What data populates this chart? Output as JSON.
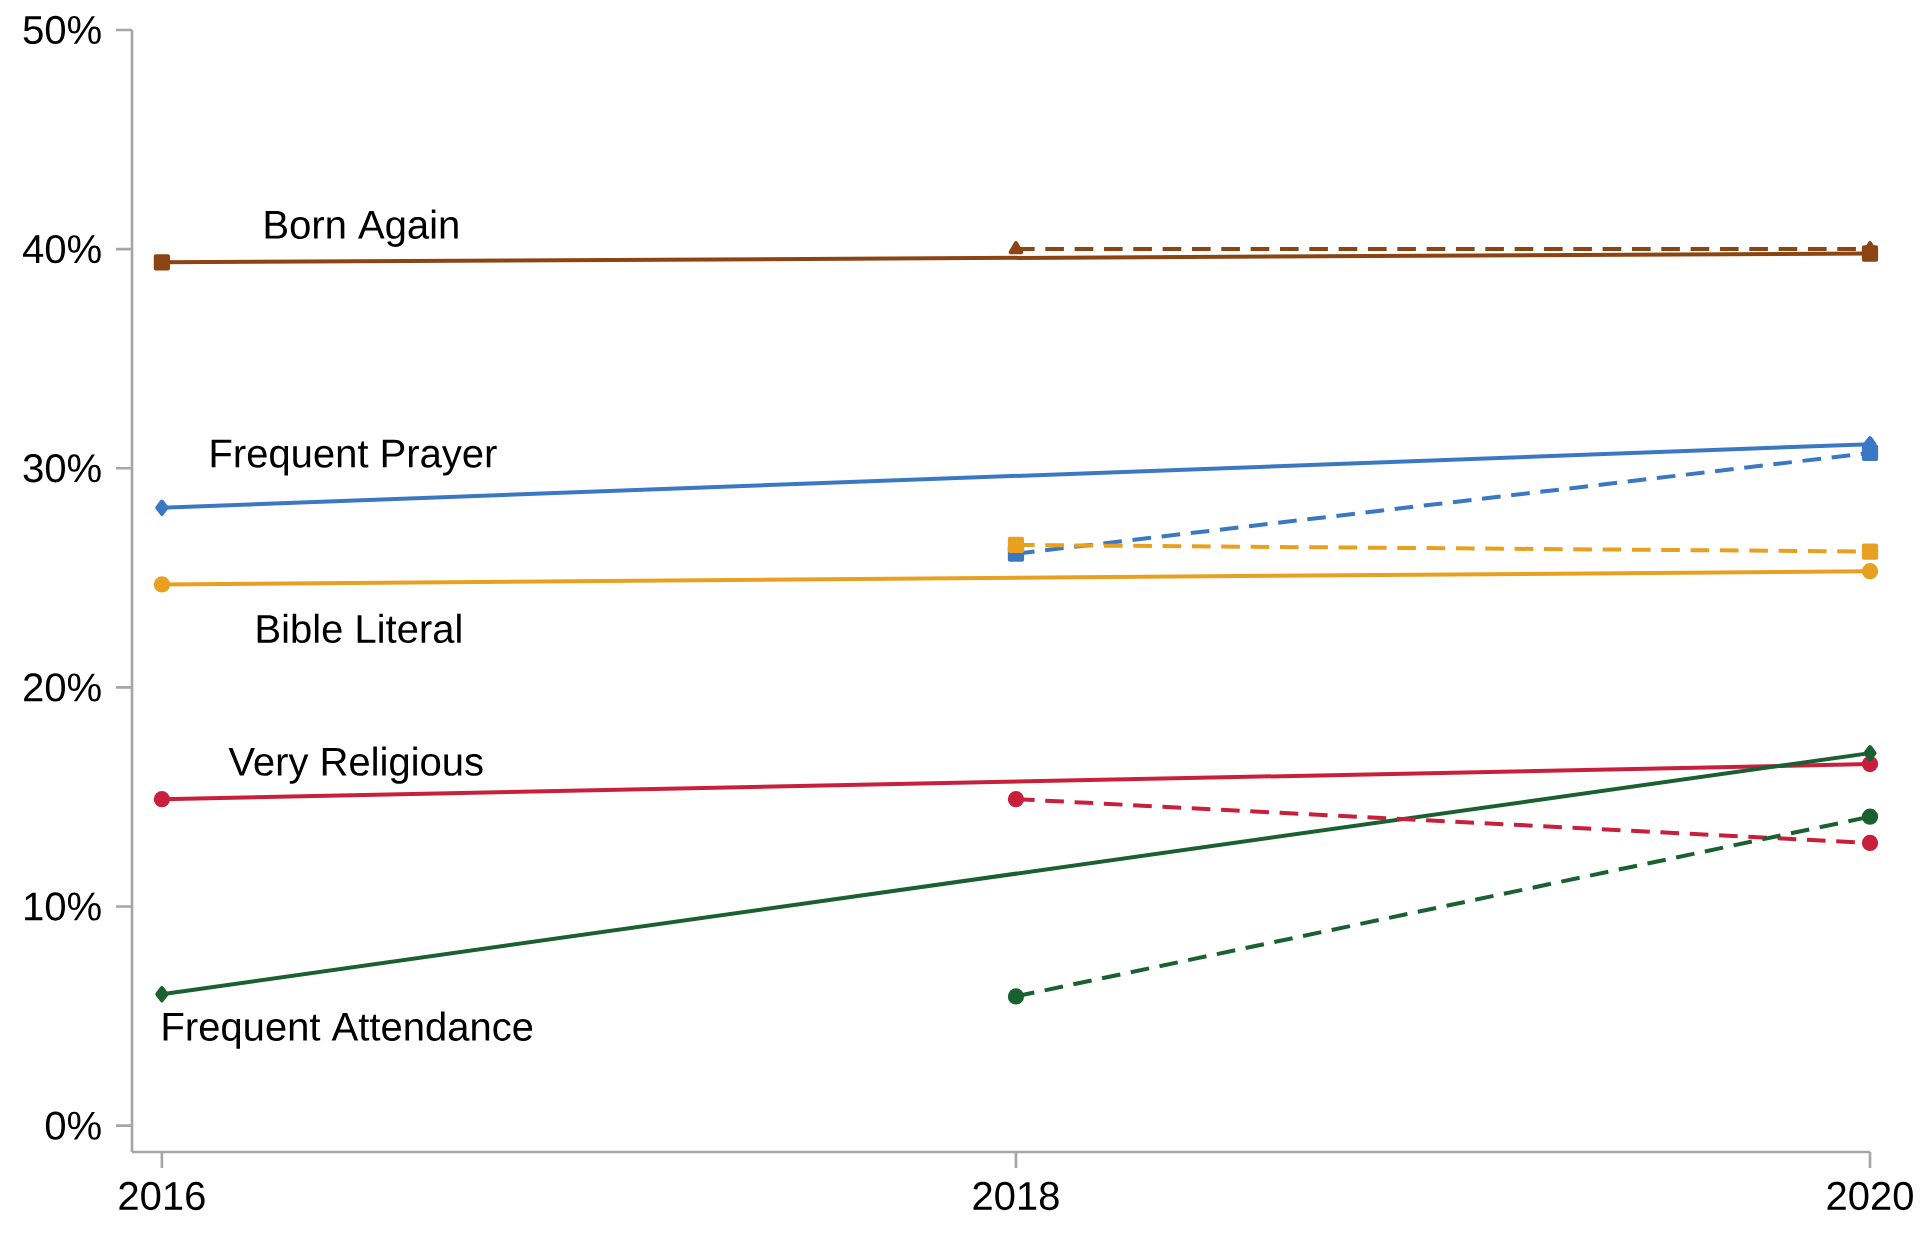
{
  "chart_data": {
    "type": "line",
    "xlim": [
      2015.93,
      2020
    ],
    "ylim": [
      -1.2,
      50
    ],
    "xticks": [
      2016,
      2018,
      2020
    ],
    "yticks": [
      {
        "value": 0,
        "label": "0%"
      },
      {
        "value": 10,
        "label": "10%"
      },
      {
        "value": 20,
        "label": "20%"
      },
      {
        "value": 30,
        "label": "30%"
      },
      {
        "value": 40,
        "label": "40%"
      },
      {
        "value": 50,
        "label": "50%"
      }
    ],
    "series": [
      {
        "name": "Born Again",
        "color": "#8b4513",
        "x": [
          2016,
          2020
        ],
        "values": [
          39.4,
          39.8
        ],
        "line_style": "solid",
        "marker": "square"
      },
      {
        "name": "Frequent Prayer",
        "color": "#3b78c3",
        "x": [
          2016,
          2020
        ],
        "values": [
          28.2,
          31.1
        ],
        "line_style": "solid",
        "marker": "diamond"
      },
      {
        "name": "Bible Literal",
        "color": "#e8a020",
        "x": [
          2016,
          2020
        ],
        "values": [
          24.7,
          25.3
        ],
        "line_style": "solid",
        "marker": "circle"
      },
      {
        "name": "Very Religious",
        "color": "#c8203c",
        "x": [
          2016,
          2020
        ],
        "values": [
          14.9,
          16.5
        ],
        "line_style": "solid",
        "marker": "circle"
      },
      {
        "name": "Frequent Attendance",
        "color": "#1a6030",
        "x": [
          2016,
          2020
        ],
        "values": [
          6.0,
          17.0
        ],
        "line_style": "solid",
        "marker": "diamond"
      },
      {
        "color": "#8b4513",
        "x": [
          2018,
          2020
        ],
        "values": [
          40.0,
          40.0
        ],
        "line_style": "dashed",
        "marker": "triangle"
      },
      {
        "color": "#3b78c3",
        "x": [
          2018,
          2020
        ],
        "values": [
          26.1,
          30.7
        ],
        "line_style": "dashed",
        "marker": "square"
      },
      {
        "color": "#e8a020",
        "x": [
          2018,
          2020
        ],
        "values": [
          26.5,
          26.2
        ],
        "line_style": "dashed",
        "marker": "square"
      },
      {
        "color": "#c8203c",
        "x": [
          2018,
          2020
        ],
        "values": [
          14.9,
          12.9
        ],
        "line_style": "dashed",
        "marker": "circle"
      },
      {
        "color": "#1a6030",
        "x": [
          2018,
          2020
        ],
        "values": [
          5.9,
          14.1
        ],
        "line_style": "dashed",
        "marker": "circle"
      }
    ]
  }
}
